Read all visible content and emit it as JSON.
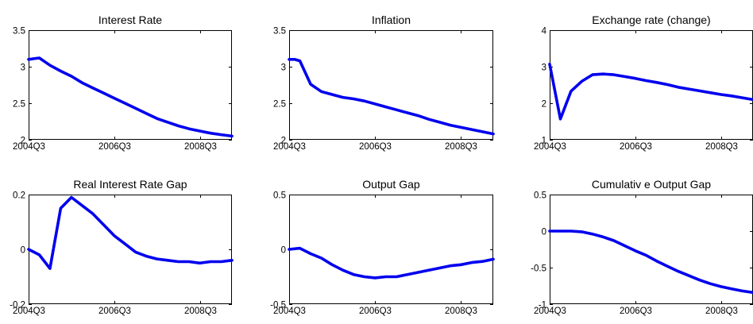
{
  "figure": {
    "line_color": "#0000ee",
    "grid": false
  },
  "chart_data": [
    {
      "type": "line",
      "title": "Interest Rate",
      "ylim": [
        2,
        3.5
      ],
      "yticks": [
        2,
        2.5,
        3,
        3.5
      ],
      "ytick_labels": [
        "2",
        "2.5",
        "3",
        "3.5"
      ],
      "xlim": [
        0,
        19
      ],
      "xticks": [
        0,
        8,
        16
      ],
      "xtick_labels": [
        "2004Q3",
        "2006Q3",
        "2008Q3"
      ],
      "series": [
        {
          "x": [
            0,
            0.5,
            1,
            2,
            3,
            4,
            5,
            6,
            7,
            8,
            9,
            10,
            11,
            12,
            13,
            14,
            15,
            16,
            17,
            18,
            19
          ],
          "values": [
            3.1,
            3.11,
            3.12,
            3.02,
            2.94,
            2.87,
            2.78,
            2.71,
            2.64,
            2.57,
            2.5,
            2.43,
            2.36,
            2.29,
            2.24,
            2.19,
            2.15,
            2.12,
            2.09,
            2.07,
            2.05
          ]
        }
      ]
    },
    {
      "type": "line",
      "title": "Inflation",
      "ylim": [
        2,
        3.5
      ],
      "yticks": [
        2,
        2.5,
        3,
        3.5
      ],
      "ytick_labels": [
        "2",
        "2.5",
        "3",
        "3.5"
      ],
      "xlim": [
        0,
        19
      ],
      "xticks": [
        0,
        8,
        16
      ],
      "xtick_labels": [
        "2004Q3",
        "2006Q3",
        "2008Q3"
      ],
      "series": [
        {
          "x": [
            0,
            0.5,
            1,
            2,
            3,
            4,
            5,
            6,
            7,
            8,
            9,
            10,
            11,
            12,
            13,
            14,
            15,
            16,
            17,
            18,
            19
          ],
          "values": [
            3.1,
            3.1,
            3.08,
            2.76,
            2.66,
            2.62,
            2.58,
            2.56,
            2.53,
            2.49,
            2.45,
            2.41,
            2.37,
            2.33,
            2.28,
            2.24,
            2.2,
            2.17,
            2.14,
            2.11,
            2.08
          ]
        }
      ]
    },
    {
      "type": "line",
      "title": "Exchange rate (change)",
      "ylim": [
        1,
        4
      ],
      "yticks": [
        1,
        2,
        3,
        4
      ],
      "ytick_labels": [
        "1",
        "2",
        "3",
        "4"
      ],
      "xlim": [
        0,
        19
      ],
      "xticks": [
        0,
        8,
        16
      ],
      "xtick_labels": [
        "2004Q3",
        "2006Q3",
        "2008Q3"
      ],
      "series": [
        {
          "x": [
            0,
            1,
            2,
            3,
            4,
            5,
            6,
            7,
            8,
            9,
            10,
            11,
            12,
            13,
            14,
            15,
            16,
            17,
            18,
            19
          ],
          "values": [
            3.07,
            1.57,
            2.33,
            2.6,
            2.78,
            2.8,
            2.78,
            2.73,
            2.68,
            2.62,
            2.57,
            2.51,
            2.44,
            2.39,
            2.34,
            2.29,
            2.24,
            2.2,
            2.15,
            2.1
          ]
        }
      ]
    },
    {
      "type": "line",
      "title": "Real Interest Rate Gap",
      "ylim": [
        -0.2,
        0.2
      ],
      "yticks": [
        -0.2,
        0,
        0.2
      ],
      "ytick_labels": [
        "-0.2",
        "0",
        "0.2"
      ],
      "xlim": [
        0,
        19
      ],
      "xticks": [
        0,
        8,
        16
      ],
      "xtick_labels": [
        "2004Q3",
        "2006Q3",
        "2008Q3"
      ],
      "series": [
        {
          "x": [
            0,
            1,
            2,
            3,
            4,
            5,
            6,
            7,
            8,
            9,
            10,
            11,
            12,
            13,
            14,
            15,
            16,
            17,
            18,
            19
          ],
          "values": [
            0,
            -0.02,
            -0.07,
            0.15,
            0.19,
            0.16,
            0.13,
            0.09,
            0.05,
            0.02,
            -0.01,
            -0.025,
            -0.035,
            -0.04,
            -0.045,
            -0.045,
            -0.05,
            -0.045,
            -0.045,
            -0.04
          ]
        }
      ]
    },
    {
      "type": "line",
      "title": "Output Gap",
      "ylim": [
        -0.5,
        0.5
      ],
      "yticks": [
        -0.5,
        0,
        0.5
      ],
      "ytick_labels": [
        "-0.5",
        "0",
        "0.5"
      ],
      "xlim": [
        0,
        19
      ],
      "xticks": [
        0,
        8,
        16
      ],
      "xtick_labels": [
        "2004Q3",
        "2006Q3",
        "2008Q3"
      ],
      "series": [
        {
          "x": [
            0,
            1,
            2,
            3,
            4,
            5,
            6,
            7,
            8,
            9,
            10,
            11,
            12,
            13,
            14,
            15,
            16,
            17,
            18,
            19
          ],
          "values": [
            0,
            0.01,
            -0.04,
            -0.08,
            -0.14,
            -0.19,
            -0.23,
            -0.25,
            -0.26,
            -0.25,
            -0.25,
            -0.23,
            -0.21,
            -0.19,
            -0.17,
            -0.15,
            -0.14,
            -0.12,
            -0.11,
            -0.09
          ]
        }
      ]
    },
    {
      "type": "line",
      "title": "Cumulativ e Output Gap",
      "ylim": [
        -1,
        0.5
      ],
      "yticks": [
        -1,
        -0.5,
        0,
        0.5
      ],
      "ytick_labels": [
        "-1",
        "-0.5",
        "0",
        "0.5"
      ],
      "xlim": [
        0,
        19
      ],
      "xticks": [
        0,
        8,
        16
      ],
      "xtick_labels": [
        "2004Q3",
        "2006Q3",
        "2008Q3"
      ],
      "series": [
        {
          "x": [
            0,
            1,
            2,
            3,
            4,
            5,
            6,
            7,
            8,
            9,
            10,
            11,
            12,
            13,
            14,
            15,
            16,
            17,
            18,
            19
          ],
          "values": [
            0,
            0,
            0,
            -0.01,
            -0.04,
            -0.08,
            -0.13,
            -0.2,
            -0.27,
            -0.33,
            -0.41,
            -0.48,
            -0.55,
            -0.61,
            -0.67,
            -0.72,
            -0.76,
            -0.79,
            -0.82,
            -0.84
          ]
        }
      ]
    }
  ]
}
